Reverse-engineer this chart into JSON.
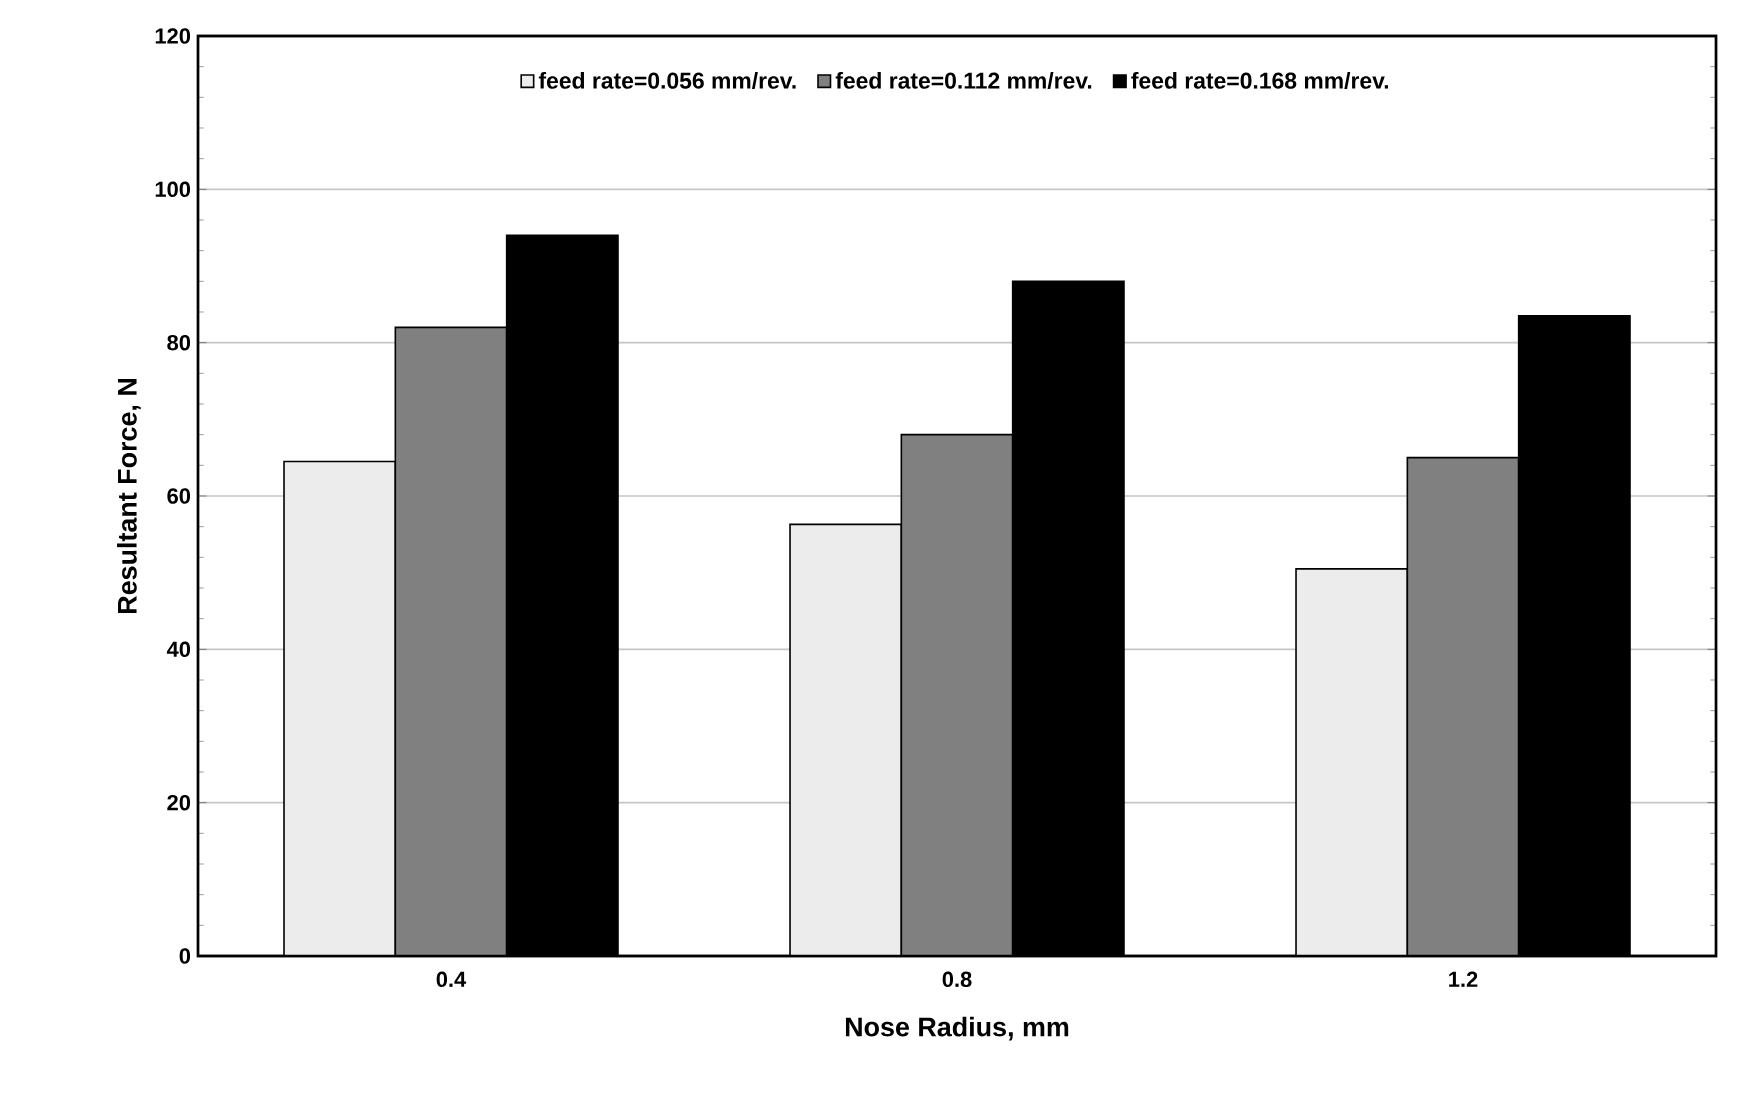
{
  "chart_data": {
    "type": "bar",
    "xlabel": "Nose Radius, mm",
    "ylabel": "Resultant Force, N",
    "categories": [
      "0.4",
      "0.8",
      "1.2"
    ],
    "series": [
      {
        "name": "feed rate=0.056 mm/rev.",
        "color": "#ececec",
        "values": [
          64.5,
          56.3,
          50.5
        ]
      },
      {
        "name": "feed rate=0.112 mm/rev.",
        "color": "#808080",
        "values": [
          82,
          68,
          65
        ]
      },
      {
        "name": "feed rate=0.168 mm/rev.",
        "color": "#000000",
        "values": [
          94,
          88,
          83.5
        ]
      }
    ],
    "ylim": [
      0,
      120
    ],
    "yticks": [
      0,
      20,
      40,
      60,
      80,
      100,
      120
    ],
    "grid": "y",
    "legend": "top"
  }
}
